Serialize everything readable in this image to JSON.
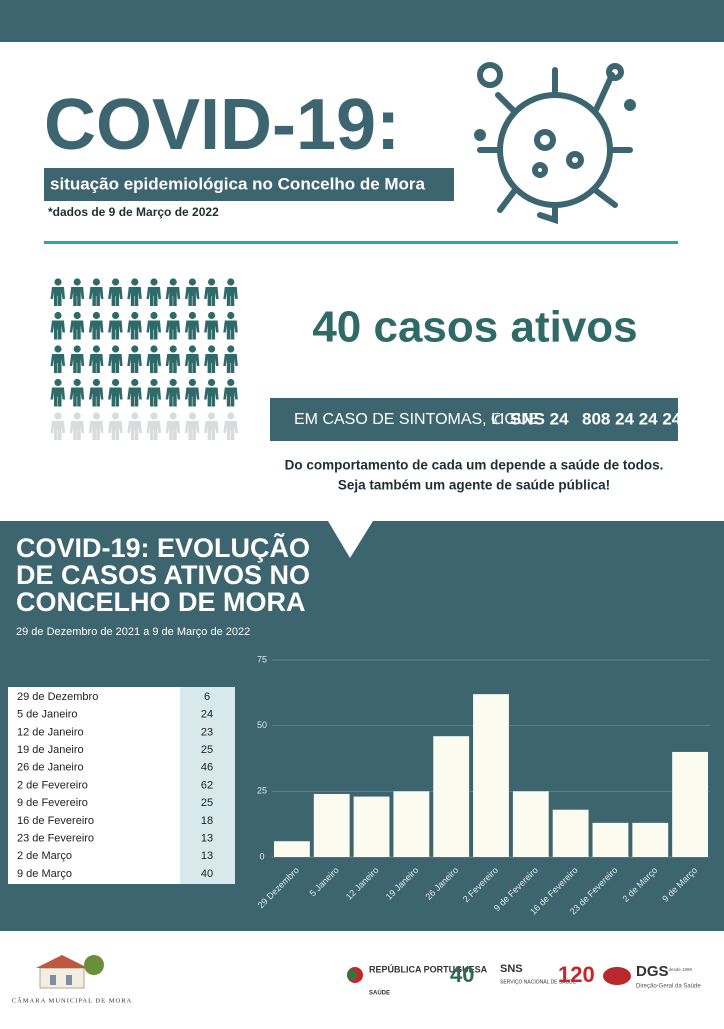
{
  "header": {
    "title": "COVID-19:",
    "subtitle": "situação epidemiológica no Concelho de Mora",
    "note": "*dados de 9 de Março de 2022"
  },
  "active": {
    "headline": "40 casos ativos"
  },
  "hotline": {
    "text": "EM CASO DE SINTOMAS, LIGUE",
    "service": "SNS 24",
    "number": "808 24 24 24"
  },
  "message": [
    "Do comportamento de cada um depende a saúde de todos.",
    "Seja também um agente de saúde pública!"
  ],
  "section": {
    "title": [
      "COVID-19: EVOLUÇÃO",
      "DE CASOS ATIVOS NO",
      "CONCELHO DE MORA"
    ],
    "subtitle": "29 de Dezembro de 2021 a 9 de Março de 2022"
  },
  "table": {
    "rows": [
      [
        "29 de Dezembro",
        "6"
      ],
      [
        "5 de Janeiro",
        "24"
      ],
      [
        "12 de Janeiro",
        "23"
      ],
      [
        "19 de Janeiro",
        "25"
      ],
      [
        "26 de Janeiro",
        "46"
      ],
      [
        "2 de Fevereiro",
        "62"
      ],
      [
        "9 de Fevereiro",
        "25"
      ],
      [
        "16 de Fevereiro",
        "18"
      ],
      [
        "23 de Fevereiro",
        "13"
      ],
      [
        "2 de Março",
        "13"
      ],
      [
        "9 de Março",
        "40"
      ]
    ]
  },
  "chart_data": {
    "type": "bar",
    "categories": [
      "29 Dezembro",
      "5 Janeiro",
      "12 Janeiro",
      "19 Janeiro",
      "26 Janeiro",
      "2 Fevereiro",
      "9 de Fevereiro",
      "16 de Fevereiro",
      "23 de Fevereiro",
      "2 de Março",
      "9 de Março"
    ],
    "values": [
      6,
      24,
      23,
      25,
      46,
      62,
      25,
      18,
      13,
      13,
      40
    ],
    "color": "#fbfbf0",
    "ylim": [
      0,
      75
    ],
    "yticks": [
      0,
      25,
      50,
      75
    ],
    "grid": true
  },
  "footer": {
    "municipality": "CÂMARA MUNICIPAL DE MORA",
    "republic": "REPÚBLICA PORTUGUESA",
    "ministry": "SAÚDE",
    "sns_anniv": "40",
    "sns": "SNS",
    "sns_full": "SERVIÇO NACIONAL DE SAÚDE",
    "dgs_anniv": "120",
    "dgs": "DGS",
    "dgs_since": "desde 1899",
    "dgs_full": "Direção-Geral da Saúde"
  }
}
